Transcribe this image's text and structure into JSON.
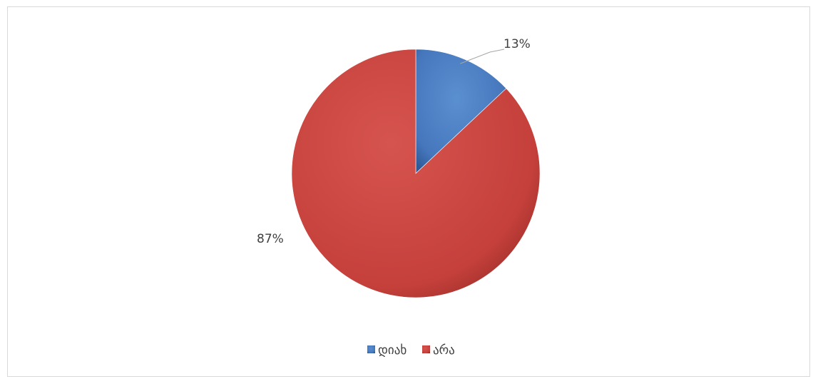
{
  "chart_data": {
    "type": "pie",
    "categories": [
      "დიახ",
      "არა"
    ],
    "values": [
      13,
      87
    ],
    "data_labels": [
      "13%",
      "87%"
    ],
    "colors": [
      "#4F81BD",
      "#C0504D"
    ],
    "legend": {
      "placement": "bottom",
      "entries": [
        "დიახ",
        "არა"
      ]
    },
    "start_angle_deg": 0,
    "direction": "clockwise"
  }
}
